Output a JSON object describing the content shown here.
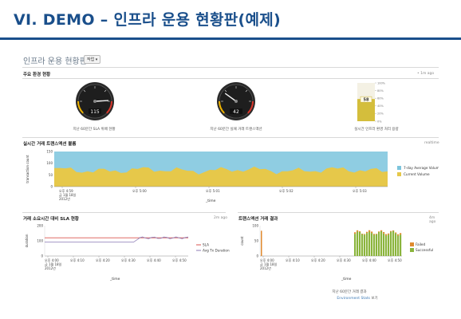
{
  "slide": {
    "title": "VI. DEMO – 인프라 운용 현황판(예제)",
    "accent": "#1a4f8b"
  },
  "dashboard": {
    "title": "인프라 운용 현황판",
    "edit_label": "작업 ▾",
    "kpi": {
      "title": "주요 환경 현황",
      "updated": "• 1m ago",
      "gauges": [
        {
          "value": "115",
          "value_num": 115,
          "max": 140,
          "caption": "지난 60분간 SLA 위배 현황"
        },
        {
          "value": "42",
          "value_num": 42,
          "max": 140,
          "caption": "지난 60분간 실패 거래 트랜스액션"
        }
      ],
      "bar_gauge": {
        "value": "58",
        "value_num": 58,
        "ticks": [
          "100%",
          "80%",
          "60%",
          "40%",
          "20%",
          "0%"
        ],
        "caption": "실시간 인프라 환경 처리 용량"
      }
    },
    "volume": {
      "title": "실시간 거래 트랜스액션 볼륨",
      "updated": "realtime",
      "ylabel": "transaction count",
      "yticks": [
        "150",
        "100",
        "50",
        "0"
      ],
      "xticks": [
        "오후 4:59",
        "오후 5:00",
        "오후 5:01",
        "오후 5:02",
        "오후 5:03"
      ],
      "date_lines": [
        "금 1월 18일",
        "2012년"
      ],
      "xlabel": "_time",
      "legend": [
        {
          "label": "7-day Average Volume",
          "color": "#7cc4dc"
        },
        {
          "label": "Current Volume",
          "color": "#e6c84a"
        }
      ]
    },
    "sla": {
      "title": "거래 소요시간 대비 SLA 현황",
      "updated": "2m ago",
      "ylabel": "duration",
      "yticks": [
        "200",
        "100",
        "0"
      ],
      "xticks": [
        "오후 4:00",
        "오후 4:10",
        "오후 4:20",
        "오후 4:30",
        "오후 4:40",
        "오후 4:50"
      ],
      "date_lines": [
        "금 1월 18일",
        "2012년"
      ],
      "xlabel": "_time",
      "legend": [
        {
          "label": "SLA",
          "color": "#d9534f"
        },
        {
          "label": "Avg Tx Duration",
          "color": "#8c7bb5"
        }
      ]
    },
    "tx": {
      "title": "트랜스액션 거래 결과",
      "updated": "4m ago",
      "ylabel": "count",
      "yticks": [
        "100",
        "50",
        "0"
      ],
      "xticks": [
        "오후 4:00",
        "오후 4:10",
        "오후 4:20",
        "오후 4:30",
        "오후 4:40",
        "오후 4:50"
      ],
      "date_lines": [
        "금 1월 18일",
        "2012년"
      ],
      "xlabel": "_time",
      "legend": [
        {
          "label": "Failed",
          "color": "#e08a2e"
        },
        {
          "label": "Successful",
          "color": "#8ab43c"
        }
      ],
      "footer": "지난 60분간 거래 결과",
      "footer_link": "Environment Stats",
      "footer_suffix": "보기"
    }
  }
}
